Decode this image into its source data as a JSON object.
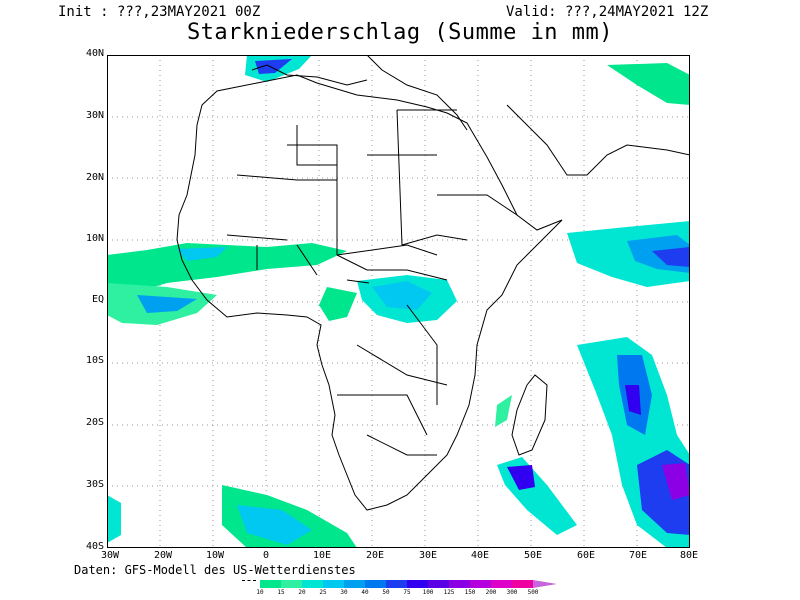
{
  "header": {
    "init": "Init : ???,23MAY2021 00Z",
    "valid": "Valid: ???,24MAY2021 12Z",
    "title": "Starkniederschlag (Summe in mm)"
  },
  "axes": {
    "lat_labels": [
      "40N",
      "30N",
      "20N",
      "10N",
      "EQ",
      "10S",
      "20S",
      "30S",
      "40S"
    ],
    "lon_labels": [
      "30W",
      "20W",
      "10W",
      "0",
      "10E",
      "20E",
      "30E",
      "40E",
      "50E",
      "60E",
      "70E",
      "80E"
    ]
  },
  "source": "Daten: GFS-Modell des US-Wetterdienstes",
  "legend": {
    "levels": [
      "10",
      "15",
      "20",
      "25",
      "30",
      "40",
      "50",
      "75",
      "100",
      "125",
      "150",
      "200",
      "300",
      "500"
    ],
    "colors": [
      "#00e68c",
      "#2ef0a0",
      "#00e6d2",
      "#00c8f0",
      "#00a0f0",
      "#0078f0",
      "#1e3cf0",
      "#3200f0",
      "#5a00e6",
      "#8c00e6",
      "#b400dc",
      "#dc00c8",
      "#f000a0",
      "#c864dc"
    ]
  }
}
